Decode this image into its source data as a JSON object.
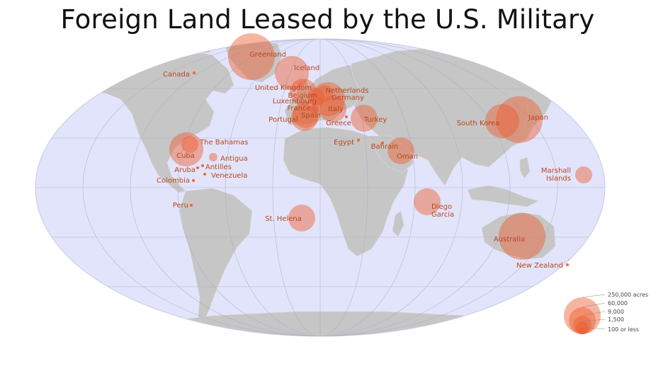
{
  "title": "Foreign Land Leased by the U.S. Military",
  "locations": [
    {
      "name": "Greenland",
      "size": "xl"
    },
    {
      "name": "Iceland",
      "size": "l"
    },
    {
      "name": "Canada",
      "size": "dot"
    },
    {
      "name": "United Kingdom",
      "size": "m"
    },
    {
      "name": "Belgium",
      "size": "s"
    },
    {
      "name": "Netherlands",
      "size": "s"
    },
    {
      "name": "Germany",
      "size": "l"
    },
    {
      "name": "Luxembourg",
      "size": "xs"
    },
    {
      "name": "France",
      "size": "xs"
    },
    {
      "name": "Italy",
      "size": "m"
    },
    {
      "name": "Spain",
      "size": "m"
    },
    {
      "name": "Portugal",
      "size": "m"
    },
    {
      "name": "Greece",
      "size": "dot"
    },
    {
      "name": "Turkey",
      "size": "m"
    },
    {
      "name": "Egypt",
      "size": "dot"
    },
    {
      "name": "Bahrain",
      "size": "dot"
    },
    {
      "name": "Oman",
      "size": "m"
    },
    {
      "name": "South Korea",
      "size": "l"
    },
    {
      "name": "Japan",
      "size": "xl"
    },
    {
      "name": "Marshall Islands",
      "size": "s"
    },
    {
      "name": "The Bahamas",
      "size": "s"
    },
    {
      "name": "Cuba",
      "size": "l"
    },
    {
      "name": "Antigua",
      "size": "xs"
    },
    {
      "name": "Antilles",
      "size": "dot"
    },
    {
      "name": "Aruba",
      "size": "dot"
    },
    {
      "name": "Venezuela",
      "size": "dot"
    },
    {
      "name": "Colombia",
      "size": "dot"
    },
    {
      "name": "Peru",
      "size": "dot"
    },
    {
      "name": "St. Helena",
      "size": "m"
    },
    {
      "name": "Diego Garcia",
      "size": "m"
    },
    {
      "name": "Australia",
      "size": "xl"
    },
    {
      "name": "New Zealand",
      "size": "dot"
    }
  ],
  "legend": {
    "items": [
      "250,000 acres",
      "60,000",
      "9,000",
      "1,500",
      "100 or less"
    ]
  },
  "colors": {
    "ocean": "#e2e4fb",
    "land": "#c6c6c6",
    "bubble": "#ee5a2c",
    "label": "#b8461c"
  }
}
